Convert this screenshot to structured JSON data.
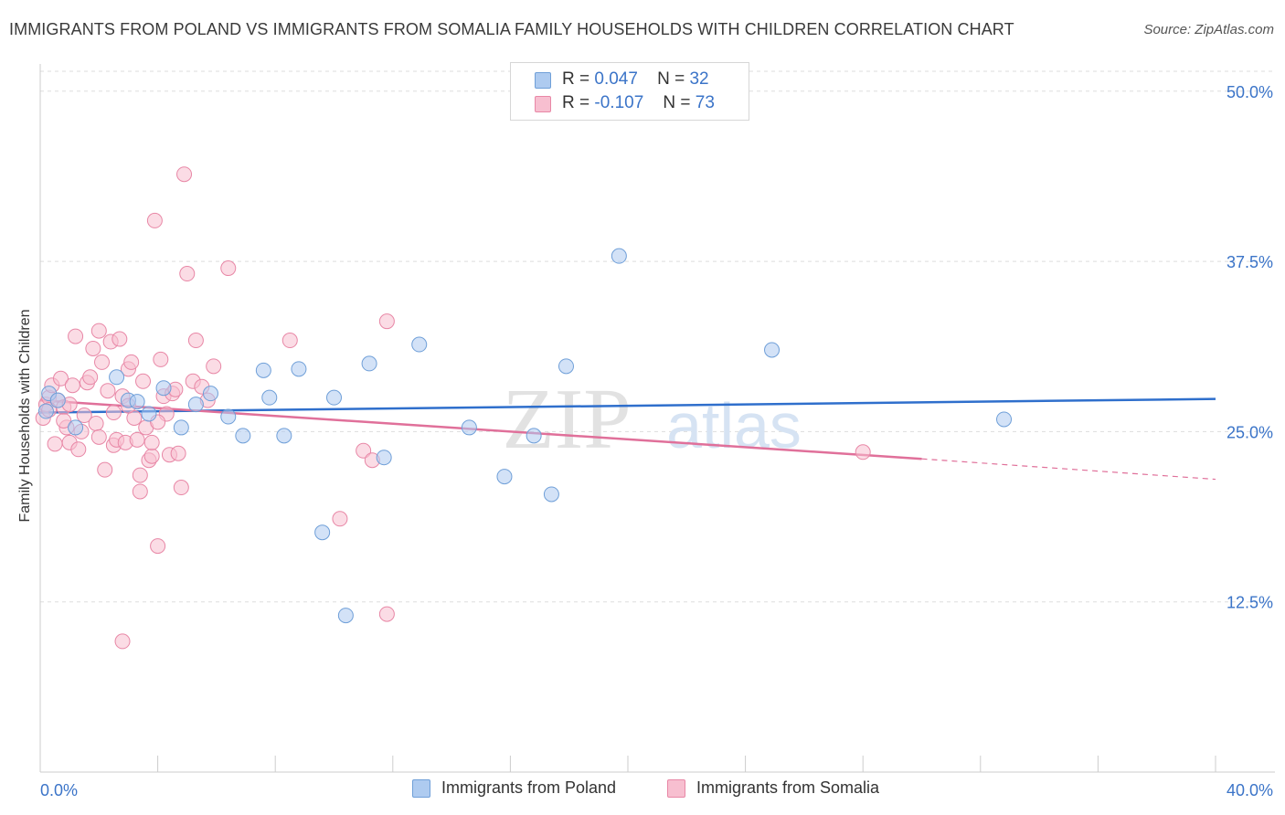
{
  "title": "IMMIGRANTS FROM POLAND VS IMMIGRANTS FROM SOMALIA FAMILY HOUSEHOLDS WITH CHILDREN CORRELATION CHART",
  "source": "Source: ZipAtlas.com",
  "watermark": {
    "zip": "ZIP",
    "atlas": "atlas"
  },
  "legend": {
    "r_label": "R =",
    "n_label": "N =",
    "poland": {
      "r": "0.047",
      "n": "32"
    },
    "somalia": {
      "r": "-0.107",
      "n": "73"
    }
  },
  "colors": {
    "poland_fill": "#aecbf0",
    "poland_stroke": "#6f9fd8",
    "poland_line": "#2f6fcc",
    "somalia_fill": "#f7bfd0",
    "somalia_stroke": "#e887a6",
    "somalia_line": "#e0709a",
    "axis_label": "#3b74c8",
    "grid": "#dddddd"
  },
  "chart_data": {
    "type": "scatter",
    "title": "IMMIGRANTS FROM POLAND VS IMMIGRANTS FROM SOMALIA FAMILY HOUSEHOLDS WITH CHILDREN CORRELATION CHART",
    "xlabel": "",
    "ylabel": "Family Households with Children",
    "xlim": [
      0,
      40
    ],
    "ylim": [
      0,
      52
    ],
    "x_tick_labels": [
      "0.0%",
      "40.0%"
    ],
    "y_ticks": [
      12.5,
      25.0,
      37.5,
      50.0
    ],
    "y_tick_labels": [
      "12.5%",
      "25.0%",
      "37.5%",
      "50.0%"
    ],
    "series": [
      {
        "name": "Immigrants from Poland",
        "r": 0.047,
        "n": 32,
        "trend": {
          "x0": 0,
          "y0": 26.4,
          "x1": 40,
          "y1": 27.4
        },
        "points": [
          [
            0.3,
            27.8
          ],
          [
            0.6,
            27.3
          ],
          [
            1.2,
            25.3
          ],
          [
            2.6,
            29.0
          ],
          [
            3.0,
            27.3
          ],
          [
            3.3,
            27.2
          ],
          [
            3.7,
            26.3
          ],
          [
            4.2,
            28.2
          ],
          [
            4.8,
            25.3
          ],
          [
            5.3,
            27.0
          ],
          [
            5.8,
            27.8
          ],
          [
            6.4,
            26.1
          ],
          [
            6.9,
            24.7
          ],
          [
            7.6,
            29.5
          ],
          [
            7.8,
            27.5
          ],
          [
            8.3,
            24.7
          ],
          [
            8.8,
            29.6
          ],
          [
            9.6,
            17.6
          ],
          [
            10.0,
            27.5
          ],
          [
            10.4,
            11.5
          ],
          [
            11.2,
            30.0
          ],
          [
            11.7,
            23.1
          ],
          [
            12.9,
            31.4
          ],
          [
            14.6,
            25.3
          ],
          [
            15.8,
            21.7
          ],
          [
            16.8,
            24.7
          ],
          [
            17.4,
            20.4
          ],
          [
            17.9,
            29.8
          ],
          [
            19.7,
            37.9
          ],
          [
            24.9,
            31.0
          ],
          [
            32.8,
            25.9
          ],
          [
            0.2,
            26.5
          ]
        ]
      },
      {
        "name": "Immigrants from Somalia",
        "r": -0.107,
        "n": 73,
        "trend": {
          "x0": 0,
          "y0": 27.3,
          "x1": 30,
          "y1": 23.0
        },
        "trend_dashed": {
          "x0": 30,
          "y0": 23.0,
          "x1": 40,
          "y1": 21.5
        },
        "points": [
          [
            0.1,
            26.0
          ],
          [
            0.2,
            27.0
          ],
          [
            0.3,
            27.5
          ],
          [
            0.4,
            28.4
          ],
          [
            0.5,
            24.1
          ],
          [
            0.6,
            27.3
          ],
          [
            0.7,
            28.9
          ],
          [
            0.8,
            26.8
          ],
          [
            0.9,
            25.3
          ],
          [
            1.0,
            24.2
          ],
          [
            1.1,
            28.4
          ],
          [
            1.2,
            32.0
          ],
          [
            1.3,
            23.7
          ],
          [
            1.4,
            25.0
          ],
          [
            1.5,
            26.2
          ],
          [
            1.6,
            28.6
          ],
          [
            1.7,
            29.0
          ],
          [
            1.8,
            31.1
          ],
          [
            1.9,
            25.6
          ],
          [
            2.0,
            32.4
          ],
          [
            2.1,
            30.1
          ],
          [
            2.2,
            22.2
          ],
          [
            2.3,
            28.0
          ],
          [
            2.4,
            31.6
          ],
          [
            2.5,
            26.4
          ],
          [
            2.5,
            24.0
          ],
          [
            2.6,
            24.4
          ],
          [
            2.7,
            31.8
          ],
          [
            2.8,
            27.6
          ],
          [
            2.8,
            9.6
          ],
          [
            2.9,
            24.2
          ],
          [
            3.0,
            29.6
          ],
          [
            3.1,
            30.1
          ],
          [
            3.2,
            26.0
          ],
          [
            3.3,
            24.4
          ],
          [
            3.4,
            21.8
          ],
          [
            3.4,
            20.6
          ],
          [
            3.5,
            28.7
          ],
          [
            3.6,
            25.3
          ],
          [
            3.7,
            22.9
          ],
          [
            3.8,
            23.2
          ],
          [
            3.8,
            24.2
          ],
          [
            3.9,
            40.5
          ],
          [
            4.0,
            16.6
          ],
          [
            4.1,
            30.3
          ],
          [
            4.2,
            27.6
          ],
          [
            4.3,
            26.3
          ],
          [
            4.4,
            23.3
          ],
          [
            4.5,
            27.8
          ],
          [
            4.6,
            28.1
          ],
          [
            4.7,
            23.4
          ],
          [
            4.8,
            20.9
          ],
          [
            4.9,
            43.9
          ],
          [
            5.0,
            36.6
          ],
          [
            5.2,
            28.7
          ],
          [
            5.3,
            31.7
          ],
          [
            5.5,
            28.3
          ],
          [
            5.7,
            27.3
          ],
          [
            5.9,
            29.8
          ],
          [
            6.4,
            37.0
          ],
          [
            8.5,
            31.7
          ],
          [
            10.2,
            18.6
          ],
          [
            11.0,
            23.6
          ],
          [
            11.3,
            22.9
          ],
          [
            11.8,
            33.1
          ],
          [
            11.8,
            11.6
          ],
          [
            28.0,
            23.5
          ],
          [
            0.3,
            26.6
          ],
          [
            1.0,
            27.0
          ],
          [
            2.0,
            24.6
          ],
          [
            3.0,
            26.9
          ],
          [
            4.0,
            25.7
          ],
          [
            0.8,
            25.8
          ]
        ]
      }
    ]
  },
  "bottom_legend": {
    "poland": "Immigrants from Poland",
    "somalia": "Immigrants from Somalia"
  }
}
